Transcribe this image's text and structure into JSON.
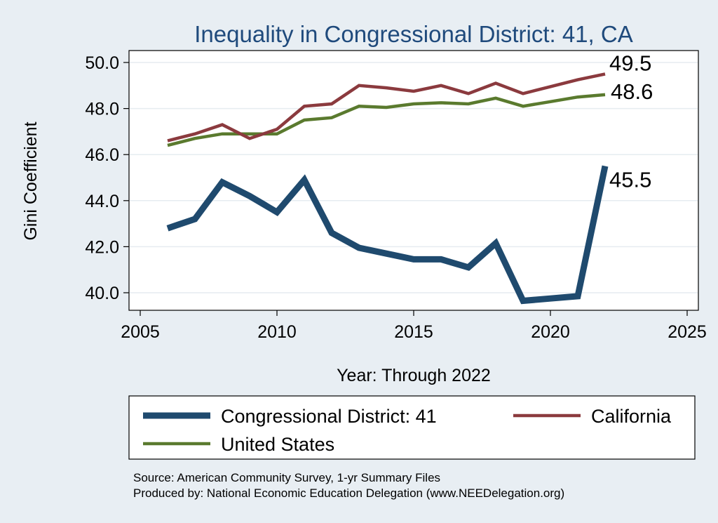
{
  "chart_data": {
    "type": "line",
    "title": "Inequality in Congressional District:  41, CA",
    "xlabel": "Year: Through 2022",
    "ylabel": "Gini Coefficient",
    "xlim": [
      2005,
      2025
    ],
    "ylim": [
      39.2,
      50.5
    ],
    "xticks": [
      2005,
      2010,
      2015,
      2020,
      2025
    ],
    "yticks": [
      40,
      42,
      44,
      46,
      48,
      50
    ],
    "ytick_labels": [
      "40.0",
      "42.0",
      "44.0",
      "46.0",
      "48.0",
      "50.0"
    ],
    "grid": true,
    "legend_position": "bottom",
    "series": [
      {
        "name": "Congressional District:  41",
        "color": "#1f4a6e",
        "x": [
          2006,
          2007,
          2008,
          2009,
          2010,
          2011,
          2012,
          2013,
          2014,
          2015,
          2016,
          2017,
          2018,
          2019,
          2020,
          2021,
          2022
        ],
        "values": [
          42.8,
          43.2,
          44.8,
          44.2,
          43.5,
          44.9,
          42.6,
          41.95,
          41.7,
          41.45,
          41.45,
          41.1,
          42.15,
          39.65,
          39.75,
          39.85,
          45.5
        ],
        "end_label": "45.5"
      },
      {
        "name": "California",
        "color": "#8b3a3e",
        "x": [
          2006,
          2007,
          2008,
          2009,
          2010,
          2011,
          2012,
          2013,
          2014,
          2015,
          2016,
          2017,
          2018,
          2019,
          2020,
          2021,
          2022
        ],
        "values": [
          46.6,
          46.9,
          47.3,
          46.7,
          47.1,
          48.1,
          48.2,
          49.0,
          48.9,
          48.75,
          49.0,
          48.65,
          49.1,
          48.65,
          48.95,
          49.25,
          49.5
        ],
        "end_label": "49.5"
      },
      {
        "name": "United States",
        "color": "#5a7a2e",
        "x": [
          2006,
          2007,
          2008,
          2009,
          2010,
          2011,
          2012,
          2013,
          2014,
          2015,
          2016,
          2017,
          2018,
          2019,
          2020,
          2021,
          2022
        ],
        "values": [
          46.4,
          46.7,
          46.9,
          46.9,
          46.9,
          47.5,
          47.6,
          48.1,
          48.05,
          48.2,
          48.25,
          48.2,
          48.45,
          48.1,
          48.3,
          48.5,
          48.6
        ],
        "end_label": "48.6"
      }
    ],
    "legend_order": [
      0,
      1,
      2
    ]
  },
  "source": {
    "line1": "Source: American Community Survey, 1-yr Summary Files",
    "line2": "Produced by: National Economic Education Delegation (www.NEEDelegation.org)"
  }
}
